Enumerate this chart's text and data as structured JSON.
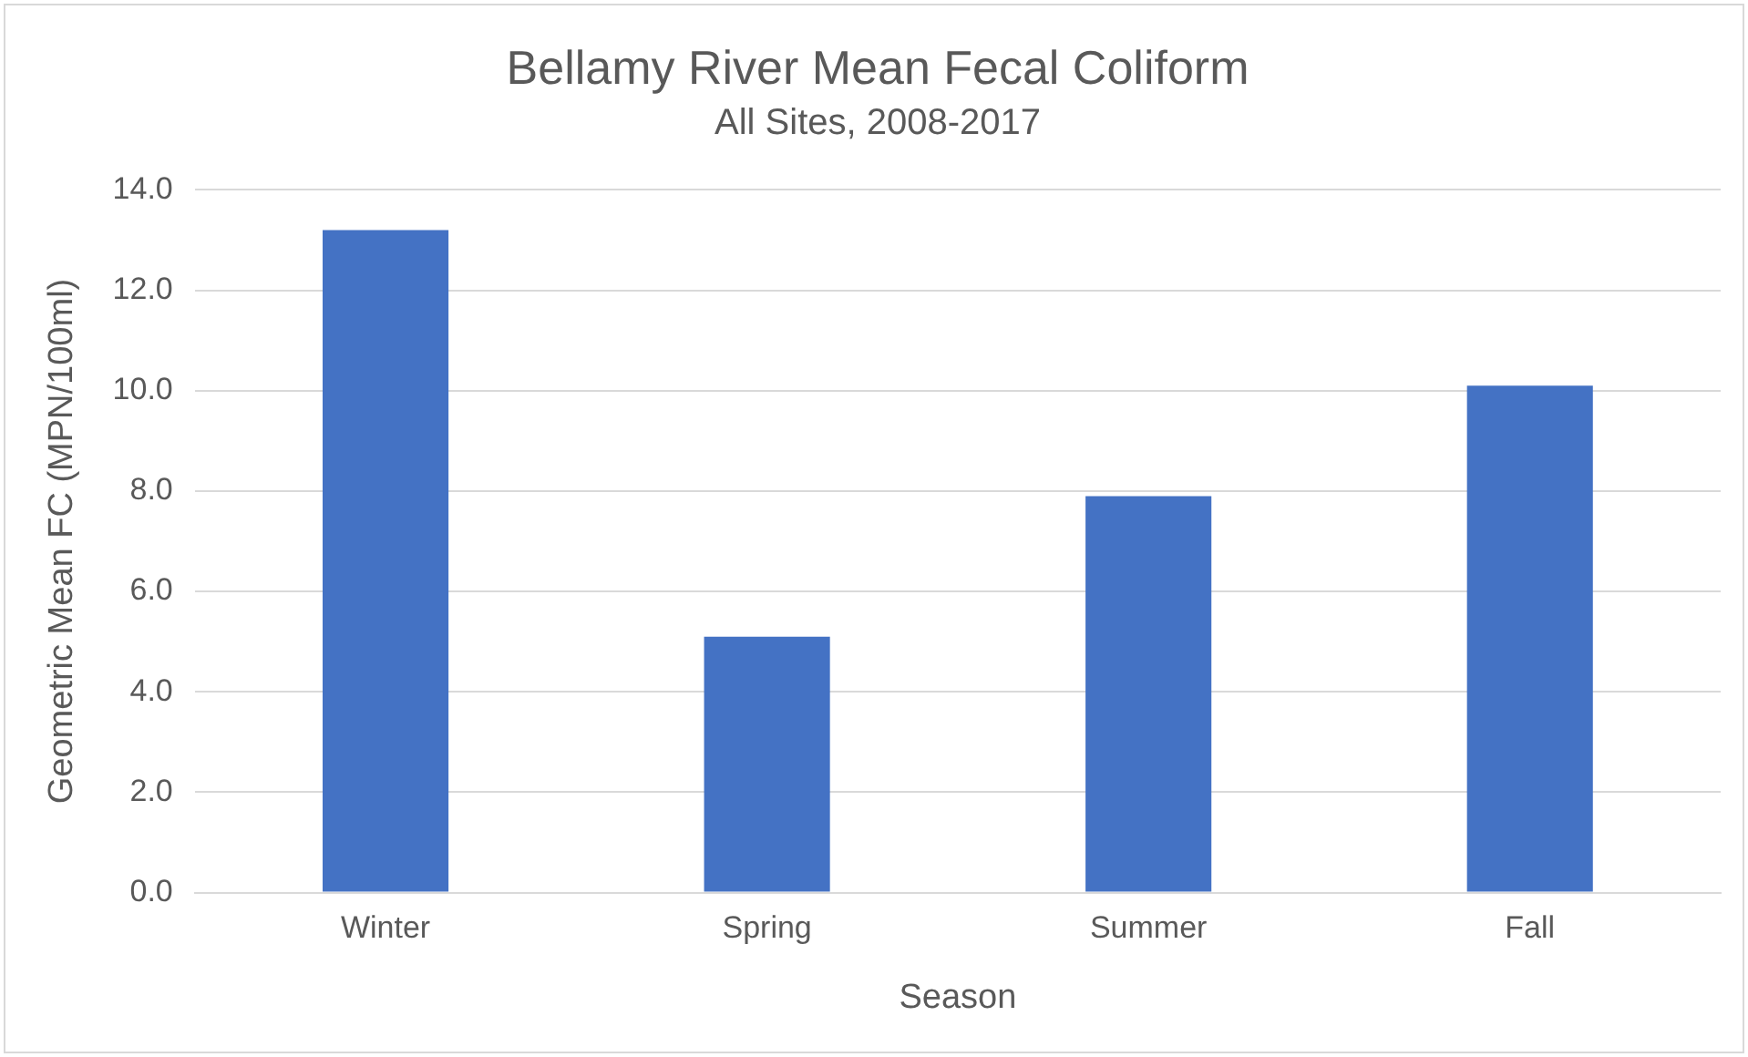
{
  "chart_data": {
    "type": "bar",
    "title": "Bellamy River Mean Fecal Coliform",
    "subtitle": "All Sites, 2008-2017",
    "xlabel": "Season",
    "ylabel": "Geometric Mean FC (MPN/100ml)",
    "categories": [
      "Winter",
      "Spring",
      "Summer",
      "Fall"
    ],
    "values": [
      13.2,
      5.1,
      7.9,
      10.1
    ],
    "color": "#4472c4",
    "ylim": [
      0,
      14
    ],
    "yticks": [
      {
        "value": 0,
        "label": "0.0"
      },
      {
        "value": 2,
        "label": "2.0"
      },
      {
        "value": 4,
        "label": "4.0"
      },
      {
        "value": 6,
        "label": "6.0"
      },
      {
        "value": 8,
        "label": "8.0"
      },
      {
        "value": 10,
        "label": "10.0"
      },
      {
        "value": 12,
        "label": "12.0"
      },
      {
        "value": 14,
        "label": "14.0"
      }
    ],
    "grid": "y",
    "legend": false
  }
}
